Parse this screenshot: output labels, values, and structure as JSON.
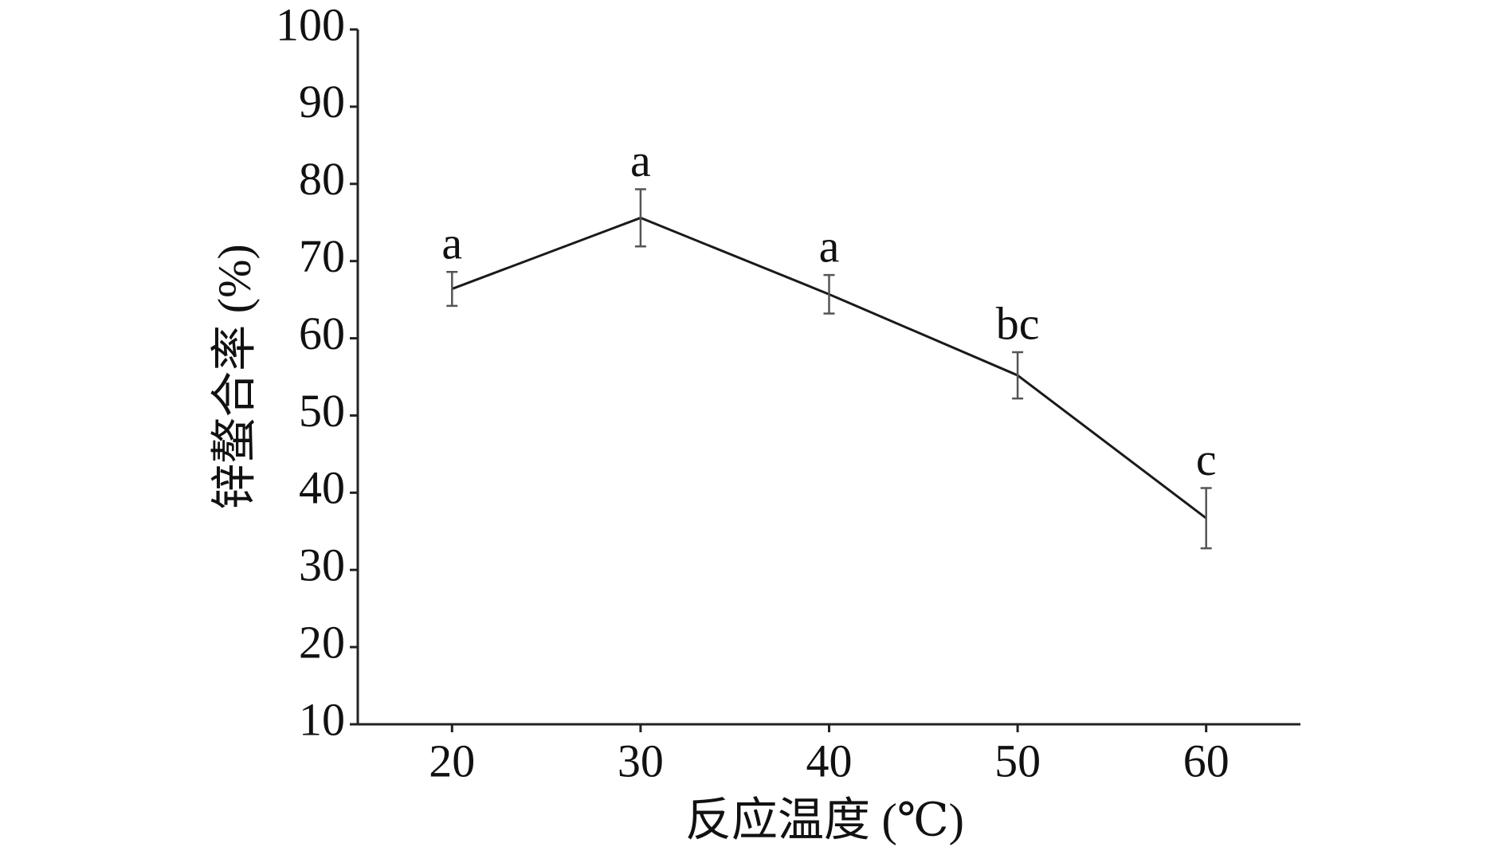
{
  "chart_data": {
    "type": "line",
    "x_label": "反应温度 (℃)",
    "y_label": "锌螯合率 (%)",
    "x": [
      20,
      30,
      40,
      50,
      60
    ],
    "series": [
      {
        "values": [
          66.4,
          75.6,
          65.7,
          55.2,
          36.7
        ],
        "errors": [
          2.2,
          3.7,
          2.5,
          3.0,
          3.9
        ],
        "annotations": [
          "a",
          "a",
          "a",
          "bc",
          "c"
        ],
        "color": "#1a1a1a"
      }
    ],
    "xlim": [
      15,
      65
    ],
    "xticks": [
      20,
      30,
      40,
      50,
      60
    ],
    "ylim": [
      10,
      100
    ],
    "yticks": [
      10,
      20,
      30,
      40,
      50,
      60,
      70,
      80,
      90,
      100
    ],
    "grid": false
  }
}
